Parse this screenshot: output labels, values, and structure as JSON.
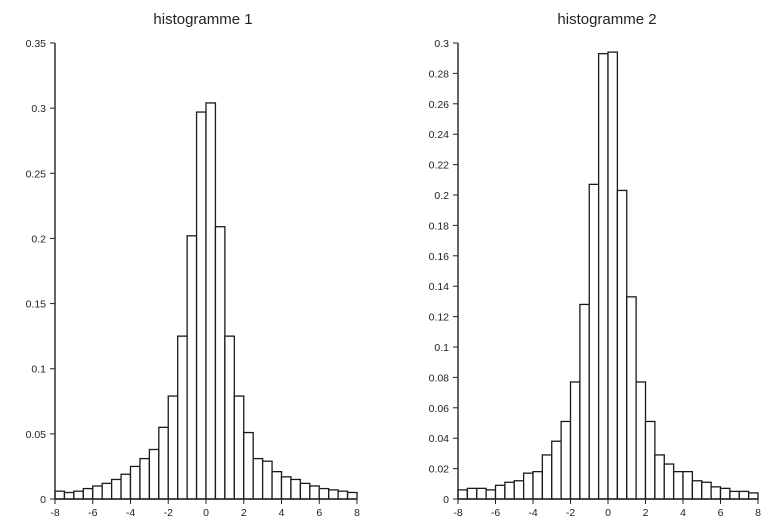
{
  "chart_data": [
    {
      "type": "bar",
      "title": "histogramme 1",
      "xlabel": "",
      "ylabel": "",
      "xlim": [
        -8,
        8
      ],
      "ylim": [
        0,
        0.35
      ],
      "x_ticks": [
        -8,
        -6,
        -4,
        -2,
        0,
        2,
        4,
        6,
        8
      ],
      "y_ticks": [
        "0",
        "0.05",
        "0.1",
        "0.15",
        "0.2",
        "0.25",
        "0.3",
        "0.35"
      ],
      "bin_width": 0.5,
      "bin_left_edges": [
        -8,
        -7.5,
        -7,
        -6.5,
        -6,
        -5.5,
        -5,
        -4.5,
        -4,
        -3.5,
        -3,
        -2.5,
        -2,
        -1.5,
        -1,
        -0.5,
        0,
        0.5,
        1,
        1.5,
        2,
        2.5,
        3,
        3.5,
        4,
        4.5,
        5,
        5.5,
        6,
        6.5,
        7,
        7.5
      ],
      "values": [
        0.006,
        0.005,
        0.006,
        0.008,
        0.01,
        0.012,
        0.015,
        0.019,
        0.025,
        0.031,
        0.038,
        0.055,
        0.079,
        0.125,
        0.202,
        0.297,
        0.304,
        0.209,
        0.125,
        0.079,
        0.051,
        0.031,
        0.029,
        0.021,
        0.017,
        0.015,
        0.012,
        0.01,
        0.008,
        0.007,
        0.006,
        0.005
      ],
      "grid": false,
      "legend": "none"
    },
    {
      "type": "bar",
      "title": "histogramme 2",
      "xlabel": "",
      "ylabel": "",
      "xlim": [
        -8,
        8
      ],
      "ylim": [
        0,
        0.3
      ],
      "x_ticks": [
        -8,
        -6,
        -4,
        -2,
        0,
        2,
        4,
        6,
        8
      ],
      "y_ticks": [
        "0",
        "0.02",
        "0.04",
        "0.06",
        "0.08",
        "0.1",
        "0.12",
        "0.14",
        "0.16",
        "0.18",
        "0.2",
        "0.22",
        "0.24",
        "0.26",
        "0.28",
        "0.3"
      ],
      "bin_width": 0.5,
      "bin_left_edges": [
        -8,
        -7.5,
        -7,
        -6.5,
        -6,
        -5.5,
        -5,
        -4.5,
        -4,
        -3.5,
        -3,
        -2.5,
        -2,
        -1.5,
        -1,
        -0.5,
        0,
        0.5,
        1,
        1.5,
        2,
        2.5,
        3,
        3.5,
        4,
        4.5,
        5,
        5.5,
        6,
        6.5,
        7,
        7.5
      ],
      "values": [
        0.006,
        0.007,
        0.007,
        0.006,
        0.009,
        0.011,
        0.012,
        0.017,
        0.018,
        0.029,
        0.038,
        0.051,
        0.077,
        0.128,
        0.207,
        0.293,
        0.294,
        0.203,
        0.133,
        0.077,
        0.051,
        0.029,
        0.023,
        0.018,
        0.018,
        0.012,
        0.011,
        0.008,
        0.007,
        0.005,
        0.005,
        0.004
      ],
      "grid": false,
      "legend": "none"
    }
  ]
}
